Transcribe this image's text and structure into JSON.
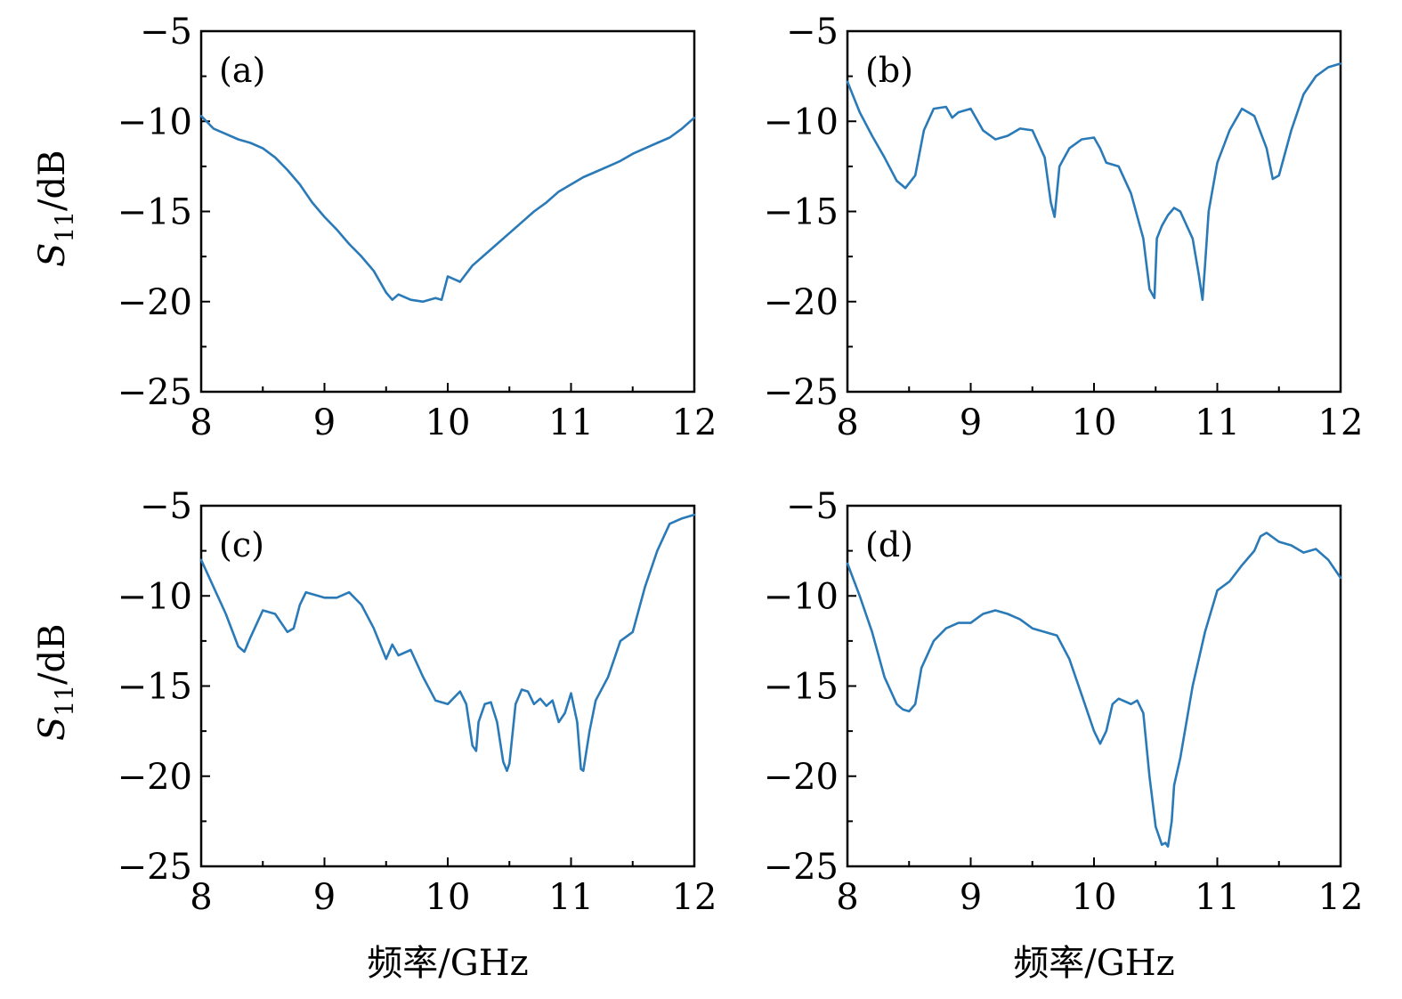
{
  "figure": {
    "ylabel_main": "S",
    "ylabel_sub": "11",
    "ylabel_unit": "/dB",
    "xlabel": "频率/GHz"
  },
  "colors": {
    "series": "#2a7ab8",
    "axis": "#000000"
  },
  "chart_data": [
    {
      "type": "line",
      "label": "(a)",
      "xlim": [
        8,
        12
      ],
      "ylim": [
        -25,
        -5
      ],
      "xticks": [
        8,
        9,
        10,
        11,
        12
      ],
      "xtick_labels": [
        "8",
        "9",
        "10",
        "11",
        "12"
      ],
      "yticks": [
        -5,
        -10,
        -15,
        -20,
        -25
      ],
      "ytick_labels": [
        "−5",
        "−10",
        "−15",
        "−20",
        "−25"
      ],
      "series": [
        {
          "x": [
            8.0,
            8.1,
            8.2,
            8.3,
            8.4,
            8.5,
            8.6,
            8.7,
            8.8,
            8.9,
            9.0,
            9.1,
            9.2,
            9.3,
            9.4,
            9.5,
            9.55,
            9.6,
            9.7,
            9.8,
            9.9,
            9.95,
            10.0,
            10.1,
            10.2,
            10.3,
            10.4,
            10.5,
            10.6,
            10.7,
            10.8,
            10.9,
            11.0,
            11.1,
            11.2,
            11.3,
            11.4,
            11.5,
            11.6,
            11.7,
            11.8,
            11.9,
            12.0
          ],
          "y": [
            -9.7,
            -10.4,
            -10.7,
            -11.0,
            -11.2,
            -11.5,
            -12.0,
            -12.7,
            -13.5,
            -14.5,
            -15.3,
            -16.0,
            -16.8,
            -17.5,
            -18.3,
            -19.5,
            -19.9,
            -19.6,
            -19.9,
            -20.0,
            -19.8,
            -19.9,
            -18.6,
            -18.9,
            -18.0,
            -17.4,
            -16.8,
            -16.2,
            -15.6,
            -15.0,
            -14.5,
            -13.9,
            -13.5,
            -13.1,
            -12.8,
            -12.5,
            -12.2,
            -11.8,
            -11.5,
            -11.2,
            -10.9,
            -10.4,
            -9.8
          ]
        }
      ]
    },
    {
      "type": "line",
      "label": "(b)",
      "xlim": [
        8,
        12
      ],
      "ylim": [
        -25,
        -5
      ],
      "xticks": [
        8,
        9,
        10,
        11,
        12
      ],
      "xtick_labels": [
        "8",
        "9",
        "10",
        "11",
        "12"
      ],
      "yticks": [
        -5,
        -10,
        -15,
        -20,
        -25
      ],
      "ytick_labels": [
        "−5",
        "−10",
        "−15",
        "−20",
        "−25"
      ],
      "series": [
        {
          "x": [
            8.0,
            8.1,
            8.2,
            8.3,
            8.4,
            8.47,
            8.55,
            8.62,
            8.7,
            8.8,
            8.85,
            8.9,
            9.0,
            9.1,
            9.2,
            9.3,
            9.4,
            9.5,
            9.6,
            9.65,
            9.68,
            9.72,
            9.8,
            9.9,
            10.0,
            10.05,
            10.1,
            10.2,
            10.3,
            10.4,
            10.45,
            10.49,
            10.51,
            10.55,
            10.6,
            10.65,
            10.7,
            10.8,
            10.85,
            10.88,
            10.9,
            10.93,
            11.0,
            11.1,
            11.2,
            11.3,
            11.4,
            11.45,
            11.5,
            11.6,
            11.7,
            11.8,
            11.9,
            12.0
          ],
          "y": [
            -7.8,
            -9.5,
            -10.8,
            -12.0,
            -13.3,
            -13.7,
            -13.0,
            -10.5,
            -9.3,
            -9.2,
            -9.8,
            -9.5,
            -9.3,
            -10.5,
            -11.0,
            -10.8,
            -10.4,
            -10.5,
            -12.0,
            -14.5,
            -15.3,
            -12.5,
            -11.5,
            -11.0,
            -10.9,
            -11.5,
            -12.3,
            -12.5,
            -14.0,
            -16.5,
            -19.3,
            -19.8,
            -16.5,
            -15.8,
            -15.2,
            -14.8,
            -15.0,
            -16.5,
            -18.5,
            -19.9,
            -18.0,
            -15.0,
            -12.3,
            -10.5,
            -9.3,
            -9.7,
            -11.5,
            -13.2,
            -13.0,
            -10.5,
            -8.5,
            -7.5,
            -7.0,
            -6.8
          ]
        }
      ]
    },
    {
      "type": "line",
      "label": "(c)",
      "xlim": [
        8,
        12
      ],
      "ylim": [
        -25,
        -5
      ],
      "xticks": [
        8,
        9,
        10,
        11,
        12
      ],
      "xtick_labels": [
        "8",
        "9",
        "10",
        "11",
        "12"
      ],
      "yticks": [
        -5,
        -10,
        -15,
        -20,
        -25
      ],
      "ytick_labels": [
        "−5",
        "−10",
        "−15",
        "−20",
        "−25"
      ],
      "series": [
        {
          "x": [
            8.0,
            8.1,
            8.2,
            8.3,
            8.35,
            8.4,
            8.5,
            8.6,
            8.7,
            8.75,
            8.8,
            8.85,
            9.0,
            9.1,
            9.2,
            9.3,
            9.4,
            9.5,
            9.55,
            9.6,
            9.7,
            9.8,
            9.9,
            10.0,
            10.1,
            10.15,
            10.2,
            10.23,
            10.25,
            10.3,
            10.35,
            10.4,
            10.45,
            10.48,
            10.5,
            10.55,
            10.6,
            10.65,
            10.7,
            10.75,
            10.8,
            10.85,
            10.9,
            10.95,
            11.0,
            11.05,
            11.08,
            11.1,
            11.15,
            11.2,
            11.3,
            11.4,
            11.5,
            11.6,
            11.7,
            11.8,
            11.9,
            12.0
          ],
          "y": [
            -8.0,
            -9.5,
            -11.0,
            -12.8,
            -13.1,
            -12.3,
            -10.8,
            -11.0,
            -12.0,
            -11.8,
            -10.5,
            -9.8,
            -10.1,
            -10.1,
            -9.8,
            -10.5,
            -11.8,
            -13.5,
            -12.7,
            -13.3,
            -13.0,
            -14.5,
            -15.8,
            -16.0,
            -15.3,
            -16.0,
            -18.3,
            -18.6,
            -17.0,
            -16.0,
            -15.9,
            -17.0,
            -19.2,
            -19.7,
            -19.3,
            -16.0,
            -15.2,
            -15.3,
            -16.0,
            -15.7,
            -16.1,
            -15.8,
            -17.0,
            -16.5,
            -15.4,
            -17.0,
            -19.6,
            -19.7,
            -17.5,
            -15.8,
            -14.5,
            -12.5,
            -12.0,
            -9.5,
            -7.5,
            -6.0,
            -5.7,
            -5.5
          ]
        }
      ]
    },
    {
      "type": "line",
      "label": "(d)",
      "xlim": [
        8,
        12
      ],
      "ylim": [
        -25,
        -5
      ],
      "xticks": [
        8,
        9,
        10,
        11,
        12
      ],
      "xtick_labels": [
        "8",
        "9",
        "10",
        "11",
        "12"
      ],
      "yticks": [
        -5,
        -10,
        -15,
        -20,
        -25
      ],
      "ytick_labels": [
        "−5",
        "−10",
        "−15",
        "−20",
        "−25"
      ],
      "series": [
        {
          "x": [
            8.0,
            8.1,
            8.2,
            8.3,
            8.4,
            8.45,
            8.5,
            8.55,
            8.6,
            8.7,
            8.8,
            8.9,
            9.0,
            9.1,
            9.2,
            9.3,
            9.4,
            9.5,
            9.6,
            9.7,
            9.8,
            9.9,
            10.0,
            10.05,
            10.1,
            10.15,
            10.2,
            10.3,
            10.35,
            10.4,
            10.45,
            10.5,
            10.55,
            10.58,
            10.6,
            10.63,
            10.65,
            10.7,
            10.8,
            10.9,
            11.0,
            11.1,
            11.2,
            11.3,
            11.35,
            11.4,
            11.5,
            11.6,
            11.7,
            11.8,
            11.9,
            12.0
          ],
          "y": [
            -8.2,
            -10.0,
            -12.0,
            -14.5,
            -16.0,
            -16.3,
            -16.4,
            -16.0,
            -14.0,
            -12.5,
            -11.8,
            -11.5,
            -11.5,
            -11.0,
            -10.8,
            -11.0,
            -11.3,
            -11.8,
            -12.0,
            -12.2,
            -13.5,
            -15.5,
            -17.5,
            -18.2,
            -17.5,
            -16.0,
            -15.7,
            -16.0,
            -15.8,
            -16.5,
            -20.0,
            -22.8,
            -23.8,
            -23.7,
            -23.9,
            -22.5,
            -20.5,
            -19.0,
            -15.0,
            -12.0,
            -9.7,
            -9.2,
            -8.3,
            -7.5,
            -6.7,
            -6.5,
            -7.0,
            -7.2,
            -7.6,
            -7.4,
            -8.0,
            -9.0
          ]
        }
      ]
    }
  ]
}
